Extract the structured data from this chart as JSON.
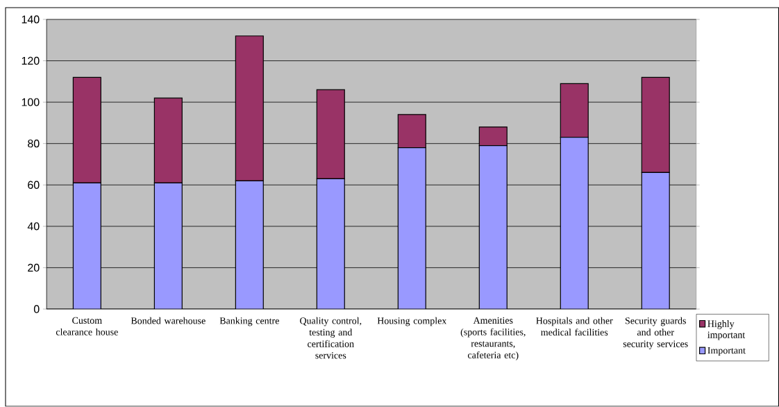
{
  "chart_data": {
    "type": "bar",
    "stacked": true,
    "categories": [
      "Custom clearance house",
      "Bonded warehouse",
      "Banking centre",
      "Quality control, testing and certification services",
      "Housing complex",
      "Amenities (sports facilities, restaurants, cafeteria etc)",
      "Hospitals and other medical facilities",
      "Security guards and other security services"
    ],
    "series": [
      {
        "name": "Important",
        "color": "#9999ff",
        "values": [
          61,
          61,
          62,
          63,
          78,
          79,
          83,
          66
        ]
      },
      {
        "name": "Highly important",
        "color": "#993366",
        "values": [
          51,
          41,
          70,
          43,
          16,
          9,
          26,
          46
        ]
      }
    ],
    "ylim": [
      0,
      140
    ],
    "yticks": [
      0,
      20,
      40,
      60,
      80,
      100,
      120,
      140
    ],
    "grid": "y",
    "legend": "bottom right"
  }
}
